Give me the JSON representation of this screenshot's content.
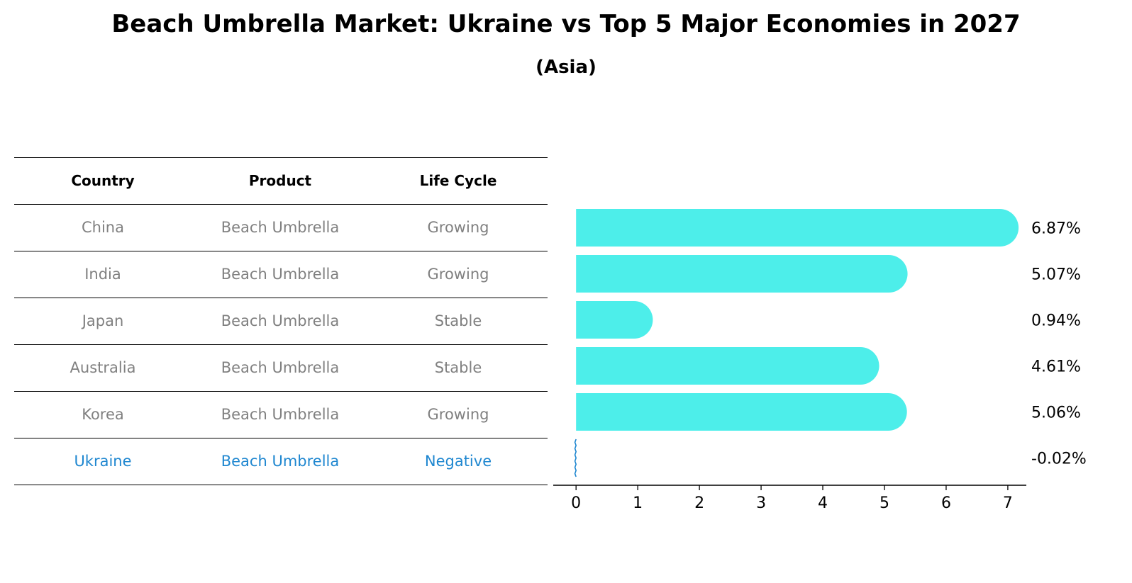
{
  "title": "Beach Umbrella Market: Ukraine vs Top 5 Major Economies in 2027",
  "subtitle": "(Asia)",
  "table": {
    "headers": [
      "Country",
      "Product",
      "Life Cycle"
    ],
    "rows": [
      {
        "country": "China",
        "product": "Beach Umbrella",
        "life_cycle": "Growing"
      },
      {
        "country": "India",
        "product": "Beach Umbrella",
        "life_cycle": "Growing"
      },
      {
        "country": "Japan",
        "product": "Beach Umbrella",
        "life_cycle": "Stable"
      },
      {
        "country": "Australia",
        "product": "Beach Umbrella",
        "life_cycle": "Stable"
      },
      {
        "country": "Korea",
        "product": "Beach Umbrella",
        "life_cycle": "Growing"
      },
      {
        "country": "Ukraine",
        "product": "Beach Umbrella",
        "life_cycle": "Negative"
      }
    ]
  },
  "colors": {
    "bar": "#4deeea",
    "highlight": "#1f87d0",
    "muted_text": "#808080"
  },
  "chart_data": {
    "type": "bar",
    "orientation": "horizontal",
    "categories": [
      "China",
      "India",
      "Japan",
      "Australia",
      "Korea",
      "Ukraine"
    ],
    "values": [
      6.87,
      5.07,
      0.94,
      4.61,
      5.06,
      -0.02
    ],
    "value_labels": [
      "6.87%",
      "5.07%",
      "0.94%",
      "4.61%",
      "5.06%",
      "-0.02%"
    ],
    "xlim": [
      -0.37,
      7.3
    ],
    "xticks": [
      0,
      1,
      2,
      3,
      4,
      5,
      6,
      7
    ],
    "title": "",
    "xlabel": "",
    "ylabel": "",
    "grid": false,
    "legend": "none"
  }
}
